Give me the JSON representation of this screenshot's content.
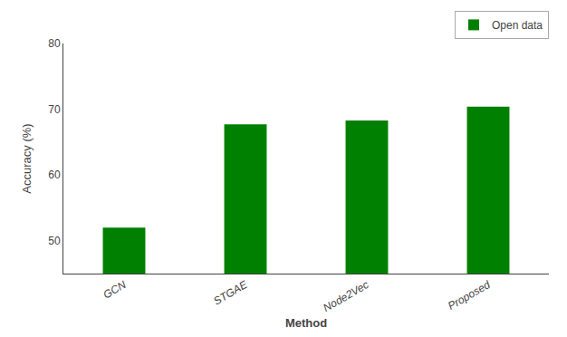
{
  "chart_data": {
    "type": "bar",
    "categories": [
      "GCN",
      "STGAE",
      "Node2Vec",
      "Proposed"
    ],
    "series": [
      {
        "name": "Open data",
        "color": "#008000",
        "values": [
          52.0,
          67.7,
          68.3,
          70.4
        ]
      }
    ],
    "xlabel": "Method",
    "ylabel": "Accuracy (%)",
    "ylim": [
      45,
      80
    ],
    "yticks": [
      50,
      60,
      70,
      80
    ],
    "grid": false,
    "legend": "upper right"
  }
}
